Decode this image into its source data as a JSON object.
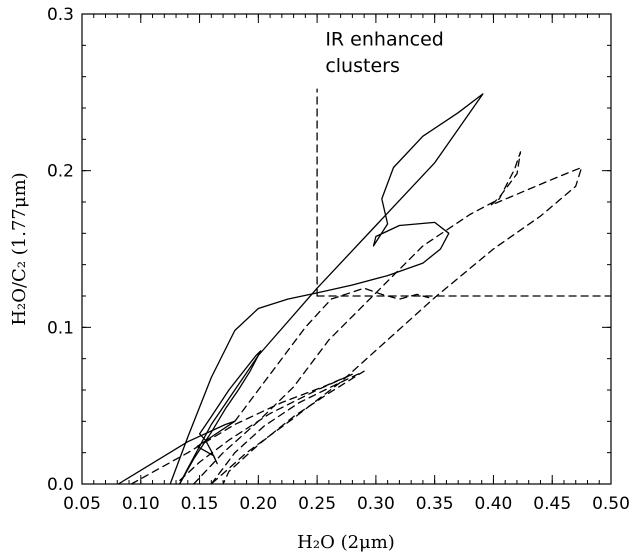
{
  "chart_data": {
    "type": "line",
    "xlabel": "H₂O (2μm)",
    "ylabel": "H₂O/C₂ (1.77μm)",
    "xlim": [
      0.05,
      0.5
    ],
    "ylim": [
      0.0,
      0.3
    ],
    "x_ticks": [
      0.05,
      0.1,
      0.15,
      0.2,
      0.25,
      0.3,
      0.35,
      0.4,
      0.45,
      0.5
    ],
    "x_tick_labels": [
      "0.05",
      "0.10",
      "0.15",
      "0.20",
      "0.25",
      "0.30",
      "0.35",
      "0.40",
      "0.45",
      "0.50"
    ],
    "y_ticks": [
      0.0,
      0.1,
      0.2,
      0.3
    ],
    "y_tick_labels": [
      "0.0",
      "0.1",
      "0.2",
      "0.3"
    ],
    "grid": false,
    "annotation": {
      "lines": [
        "IR enhanced",
        "clusters"
      ],
      "x": 0.257,
      "y_top": 0.28,
      "line_gap": 0.017
    },
    "series": [
      {
        "style": "solid",
        "points": [
          [
            0.081,
            0.0
          ],
          [
            0.14,
            0.027
          ],
          [
            0.172,
            0.038
          ],
          [
            0.18,
            0.04
          ],
          [
            0.16,
            0.03
          ],
          [
            0.148,
            0.024
          ],
          [
            0.162,
            0.018
          ],
          [
            0.165,
            0.013
          ],
          [
            0.16,
            0.021
          ],
          [
            0.155,
            0.028
          ],
          [
            0.15,
            0.032
          ],
          [
            0.16,
            0.043
          ],
          [
            0.175,
            0.06
          ],
          [
            0.198,
            0.082
          ],
          [
            0.202,
            0.085
          ],
          [
            0.193,
            0.072
          ],
          [
            0.183,
            0.06
          ],
          [
            0.172,
            0.048
          ],
          [
            0.16,
            0.033
          ],
          [
            0.145,
            0.016
          ],
          [
            0.133,
            0.0
          ]
        ]
      },
      {
        "style": "solid",
        "points": [
          [
            0.125,
            0.0
          ],
          [
            0.14,
            0.03
          ],
          [
            0.16,
            0.068
          ],
          [
            0.18,
            0.098
          ],
          [
            0.2,
            0.112
          ],
          [
            0.225,
            0.118
          ],
          [
            0.25,
            0.122
          ],
          [
            0.28,
            0.127
          ],
          [
            0.31,
            0.133
          ],
          [
            0.34,
            0.141
          ],
          [
            0.355,
            0.15
          ],
          [
            0.362,
            0.16
          ],
          [
            0.35,
            0.167
          ],
          [
            0.32,
            0.165
          ],
          [
            0.3,
            0.158
          ],
          [
            0.298,
            0.152
          ],
          [
            0.31,
            0.166
          ],
          [
            0.305,
            0.182
          ],
          [
            0.315,
            0.202
          ],
          [
            0.34,
            0.222
          ],
          [
            0.37,
            0.237
          ],
          [
            0.391,
            0.249
          ],
          [
            0.35,
            0.205
          ],
          [
            0.3,
            0.165
          ],
          [
            0.25,
            0.125
          ],
          [
            0.2,
            0.082
          ],
          [
            0.16,
            0.038
          ],
          [
            0.14,
            0.01
          ],
          [
            0.133,
            0.0
          ]
        ]
      },
      {
        "style": "dashed",
        "points": [
          [
            0.145,
            0.0
          ],
          [
            0.17,
            0.02
          ],
          [
            0.2,
            0.04
          ],
          [
            0.23,
            0.062
          ],
          [
            0.26,
            0.092
          ],
          [
            0.3,
            0.122
          ],
          [
            0.34,
            0.152
          ],
          [
            0.38,
            0.172
          ],
          [
            0.405,
            0.182
          ],
          [
            0.418,
            0.201
          ],
          [
            0.423,
            0.212
          ],
          [
            0.42,
            0.198
          ],
          [
            0.405,
            0.183
          ],
          [
            0.398,
            0.178
          ],
          [
            0.42,
            0.185
          ],
          [
            0.455,
            0.196
          ],
          [
            0.475,
            0.202
          ],
          [
            0.47,
            0.19
          ],
          [
            0.44,
            0.171
          ],
          [
            0.4,
            0.15
          ],
          [
            0.35,
            0.119
          ],
          [
            0.31,
            0.092
          ],
          [
            0.27,
            0.065
          ],
          [
            0.23,
            0.042
          ],
          [
            0.19,
            0.02
          ],
          [
            0.16,
            0.0
          ]
        ]
      },
      {
        "style": "dashed",
        "points": [
          [
            0.16,
            0.0
          ],
          [
            0.18,
            0.02
          ],
          [
            0.205,
            0.037
          ],
          [
            0.235,
            0.052
          ],
          [
            0.262,
            0.062
          ],
          [
            0.29,
            0.072
          ],
          [
            0.26,
            0.058
          ],
          [
            0.23,
            0.043
          ],
          [
            0.2,
            0.025
          ],
          [
            0.175,
            0.008
          ],
          [
            0.17,
            0.0
          ]
        ]
      },
      {
        "style": "dashed",
        "points": [
          [
            0.092,
            0.0
          ],
          [
            0.14,
            0.02
          ],
          [
            0.18,
            0.038
          ],
          [
            0.22,
            0.052
          ],
          [
            0.255,
            0.062
          ],
          [
            0.28,
            0.07
          ],
          [
            0.25,
            0.06
          ],
          [
            0.21,
            0.045
          ],
          [
            0.175,
            0.028
          ],
          [
            0.15,
            0.014
          ],
          [
            0.13,
            0.0
          ]
        ]
      },
      {
        "style": "dashed",
        "points": [
          [
            0.25,
            0.12
          ],
          [
            0.5,
            0.12
          ]
        ]
      },
      {
        "style": "dashed",
        "points": [
          [
            0.25,
            0.12
          ],
          [
            0.25,
            0.252
          ]
        ]
      },
      {
        "style": "dashed",
        "points": [
          [
            0.18,
            0.04
          ],
          [
            0.21,
            0.07
          ],
          [
            0.24,
            0.1
          ],
          [
            0.262,
            0.118
          ],
          [
            0.29,
            0.125
          ],
          [
            0.305,
            0.121
          ],
          [
            0.32,
            0.118
          ],
          [
            0.335,
            0.121
          ],
          [
            0.345,
            0.119
          ]
        ]
      }
    ]
  }
}
